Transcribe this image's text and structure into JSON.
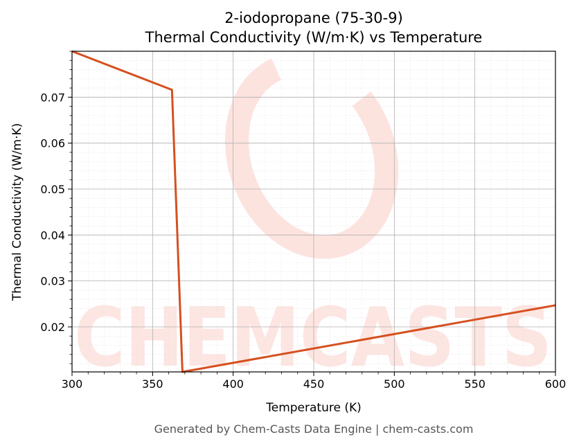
{
  "chart_data": {
    "type": "line",
    "title": "2-iodopropane (75-30-9)",
    "subtitle": "Thermal Conductivity (W/m·K) vs Temperature",
    "xlabel": "Temperature (K)",
    "ylabel": "Thermal Conductivity (W/m·K)",
    "xlim": [
      300,
      600
    ],
    "ylim": [
      0.0102,
      0.08
    ],
    "xticks": [
      300,
      350,
      400,
      450,
      500,
      550,
      600
    ],
    "xtick_labels": [
      "300",
      "350",
      "400",
      "450",
      "500",
      "550",
      "600"
    ],
    "yticks": [
      0.02,
      0.03,
      0.04,
      0.05,
      0.06,
      0.07
    ],
    "ytick_labels": [
      "0.02",
      "0.03",
      "0.04",
      "0.05",
      "0.06",
      "0.07"
    ],
    "grid": true,
    "series": [
      {
        "color": "#d5501f",
        "x": [
          300,
          362,
          368.5,
          600
        ],
        "y": [
          0.08,
          0.0716,
          0.0102,
          0.0247
        ]
      }
    ]
  },
  "watermark": {
    "text": "CHEMCASTS",
    "color": "#fde0dc"
  },
  "footer": "Generated by Chem-Casts Data Engine | chem-casts.com"
}
